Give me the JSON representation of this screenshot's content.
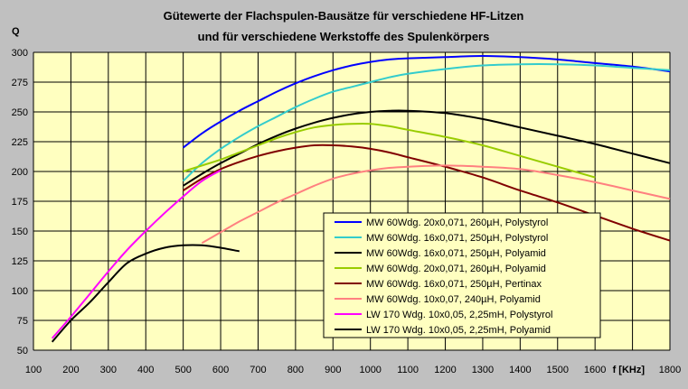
{
  "chart_data": {
    "type": "line",
    "title": [
      "Gütewerte der Flachspulen-Bausätze für verschiedene HF-Litzen",
      "und für verschiedene Werkstoffe des Spulenkörpers"
    ],
    "ylabel": "Q",
    "xlabel": "f [KHz]",
    "xlim": [
      100,
      1800
    ],
    "ylim": [
      50,
      300
    ],
    "xticks": [
      100,
      200,
      300,
      400,
      500,
      600,
      700,
      800,
      900,
      1000,
      1100,
      1200,
      1300,
      1400,
      1500,
      1600,
      1700,
      1800
    ],
    "yticks": [
      50,
      75,
      100,
      125,
      150,
      175,
      200,
      225,
      250,
      275,
      300
    ],
    "grid": true,
    "legend_position": "bottom-right",
    "colors": {
      "plot_background": "#ffffc0",
      "page_background": "#c0c0c0",
      "grid": "#000000"
    },
    "series": [
      {
        "name": "MW 60Wdg. 20x0,071, 260µH, Polystyrol",
        "color": "#0000ff",
        "x": [
          500,
          550,
          600,
          650,
          700,
          750,
          800,
          850,
          900,
          950,
          1000,
          1050,
          1100,
          1200,
          1300,
          1400,
          1500,
          1600,
          1700,
          1800
        ],
        "y": [
          220,
          232,
          242,
          251,
          259,
          267,
          274,
          280,
          285,
          289,
          292,
          294,
          295,
          296,
          297,
          296,
          294,
          291,
          288,
          284
        ]
      },
      {
        "name": "MW 60Wdg. 16x0,071, 250µH, Polystyrol",
        "color": "#33cccc",
        "x": [
          500,
          550,
          600,
          650,
          700,
          750,
          800,
          850,
          900,
          950,
          1000,
          1050,
          1100,
          1200,
          1300,
          1400,
          1500,
          1600,
          1700,
          1800
        ],
        "y": [
          192,
          207,
          219,
          229,
          238,
          246,
          254,
          261,
          267,
          271,
          275,
          279,
          282,
          286,
          289,
          290,
          290,
          289,
          287,
          285
        ]
      },
      {
        "name": "MW 60Wdg. 16x0,071, 250µH, Polyamid",
        "color": "#000000",
        "x": [
          500,
          550,
          600,
          650,
          700,
          750,
          800,
          850,
          900,
          950,
          1000,
          1050,
          1100,
          1200,
          1300,
          1400,
          1500,
          1600,
          1700,
          1800
        ],
        "y": [
          188,
          198,
          207,
          215,
          223,
          230,
          236,
          241,
          245,
          248,
          250,
          251,
          251,
          249,
          244,
          237,
          230,
          223,
          215,
          207
        ]
      },
      {
        "name": "MW 60Wdg. 20x0,071, 260µH, Polyamid",
        "color": "#99cc00",
        "x": [
          500,
          550,
          600,
          650,
          700,
          750,
          800,
          850,
          900,
          950,
          1000,
          1050,
          1100,
          1200,
          1300,
          1400,
          1500,
          1600
        ],
        "y": [
          200,
          205,
          210,
          216,
          222,
          228,
          233,
          237,
          239,
          240,
          240,
          238,
          235,
          229,
          222,
          213,
          204,
          195
        ]
      },
      {
        "name": "MW 60Wdg. 16x0,071, 250µH, Pertinax",
        "color": "#800000",
        "x": [
          500,
          550,
          600,
          650,
          700,
          750,
          800,
          850,
          900,
          950,
          1000,
          1050,
          1100,
          1200,
          1300,
          1400,
          1500,
          1600,
          1700,
          1800
        ],
        "y": [
          184,
          194,
          202,
          208,
          213,
          217,
          220,
          222,
          222,
          221,
          219,
          216,
          212,
          204,
          195,
          184,
          174,
          163,
          152,
          142
        ]
      },
      {
        "name": "MW 60Wdg. 10x0,07, 240µH, Polyamid",
        "color": "#ff8080",
        "x": [
          550,
          600,
          650,
          700,
          750,
          800,
          850,
          900,
          950,
          1000,
          1050,
          1100,
          1200,
          1300,
          1400,
          1500,
          1600,
          1700,
          1800
        ],
        "y": [
          140,
          149,
          158,
          166,
          174,
          181,
          188,
          194,
          198,
          201,
          203,
          204,
          205,
          204,
          202,
          197,
          191,
          184,
          177
        ]
      },
      {
        "name": "LW 170 Wdg. 10x0,05, 2,25mH, Polystyrol",
        "color": "#ff00ff",
        "x": [
          150,
          200,
          250,
          300,
          350,
          400,
          450,
          500,
          550,
          600
        ],
        "y": [
          60,
          78,
          97,
          116,
          134,
          150,
          165,
          179,
          192,
          201
        ]
      },
      {
        "name": "LW 170 Wdg. 10x0,05, 2,25mH, Polyamid",
        "color": "#000000",
        "x": [
          150,
          200,
          250,
          300,
          350,
          400,
          450,
          500,
          550,
          600,
          650
        ],
        "y": [
          57,
          75,
          90,
          107,
          123,
          131,
          136,
          138,
          138,
          136,
          133
        ]
      }
    ]
  }
}
